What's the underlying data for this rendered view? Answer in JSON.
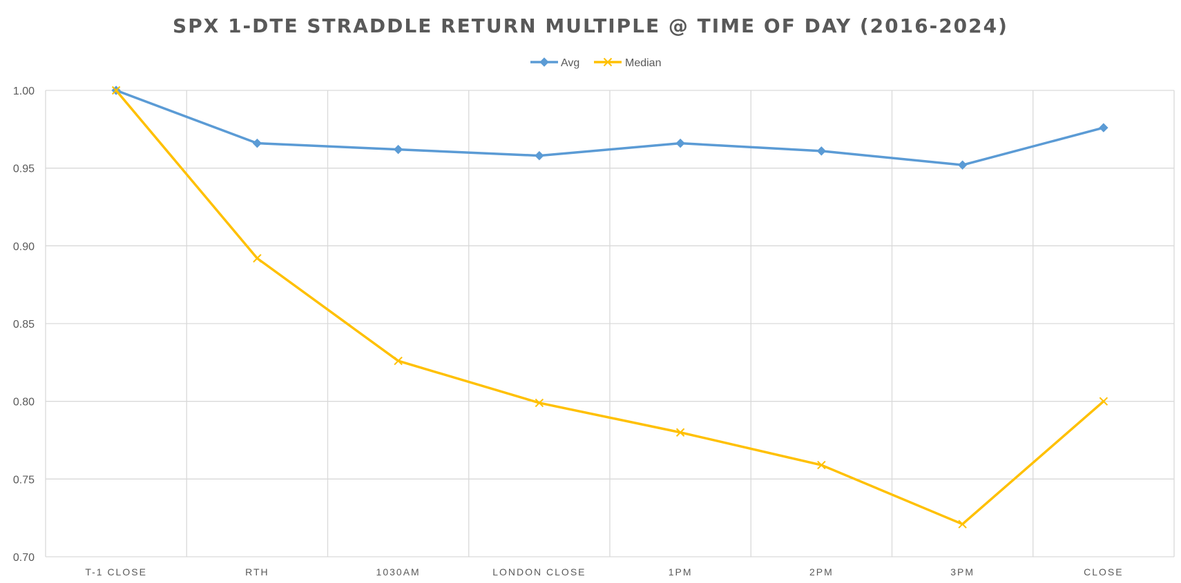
{
  "chart_data": {
    "type": "line",
    "title": "SPX 1-DTE STRADDLE RETURN MULTIPLE @ TIME OF DAY (2016-2024)",
    "xlabel": "",
    "ylabel": "",
    "categories": [
      "T-1 CLOSE",
      "RTH",
      "1030AM",
      "LONDON CLOSE",
      "1PM",
      "2PM",
      "3PM",
      "CLOSE"
    ],
    "ylim": [
      0.7,
      1.0
    ],
    "yticks": [
      "1.00",
      "0.95",
      "0.90",
      "0.85",
      "0.80",
      "0.75",
      "0.70"
    ],
    "ytick_values": [
      1.0,
      0.95,
      0.9,
      0.85,
      0.8,
      0.75,
      0.7
    ],
    "grid": true,
    "legend_position": "top-center",
    "series": [
      {
        "name": "Avg",
        "marker": "diamond",
        "color": "#5b9bd5",
        "values": [
          1.0,
          0.966,
          0.962,
          0.958,
          0.966,
          0.961,
          0.952,
          0.976
        ]
      },
      {
        "name": "Median",
        "marker": "x",
        "color": "#ffc000",
        "values": [
          1.0,
          0.892,
          0.826,
          0.799,
          0.78,
          0.759,
          0.721,
          0.8
        ]
      }
    ]
  }
}
